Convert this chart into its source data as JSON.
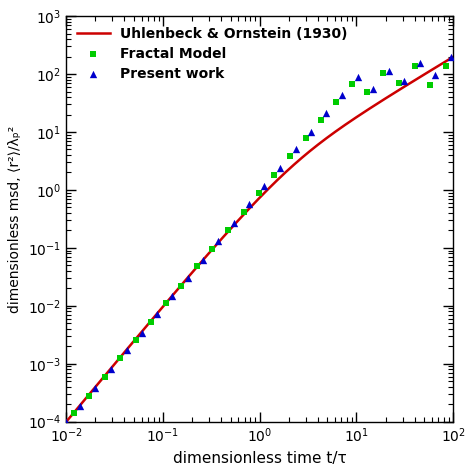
{
  "xlabel": "dimensionless time t/τ",
  "ylabel": "dimensionless msd, ⟨r²⟩/λₚ²",
  "xlim": [
    0.01,
    100
  ],
  "ylim": [
    0.0001,
    1000
  ],
  "line_color": "#cc0000",
  "fractal_color": "#00cc00",
  "present_color": "#0000cc",
  "legend_labels": [
    "Uhlenbeck & Ornstein (1930)",
    "Fractal Model",
    "Present work"
  ],
  "fractal_x": [
    0.012,
    0.017,
    0.025,
    0.036,
    0.052,
    0.075,
    0.108,
    0.155,
    0.225,
    0.32,
    0.47,
    0.68,
    0.98,
    1.4,
    2.05,
    3.0,
    4.3,
    6.2,
    9.0,
    13.0,
    19.0,
    27.5,
    40.0,
    58.0,
    84.0
  ],
  "fractal_y": [
    0.00014,
    0.00028,
    0.0006,
    0.00125,
    0.0026,
    0.0053,
    0.011,
    0.022,
    0.048,
    0.095,
    0.2,
    0.42,
    0.88,
    1.8,
    3.8,
    7.8,
    16.0,
    33.0,
    67.0,
    50.0,
    105.0,
    70.0,
    140.0,
    65.0,
    140.0
  ],
  "present_x": [
    0.01,
    0.014,
    0.02,
    0.029,
    0.042,
    0.06,
    0.087,
    0.125,
    0.18,
    0.26,
    0.37,
    0.54,
    0.78,
    1.12,
    1.62,
    2.35,
    3.4,
    4.9,
    7.1,
    10.3,
    15.0,
    21.5,
    31.0,
    45.0,
    65.0,
    94.0
  ],
  "present_y": [
    0.0001,
    0.00019,
    0.00038,
    0.0008,
    0.0017,
    0.0034,
    0.0072,
    0.0145,
    0.03,
    0.062,
    0.13,
    0.27,
    0.57,
    1.15,
    2.4,
    5.0,
    10.0,
    21.0,
    43.0,
    88.0,
    55.0,
    115.0,
    75.0,
    155.0,
    95.0,
    195.0
  ]
}
